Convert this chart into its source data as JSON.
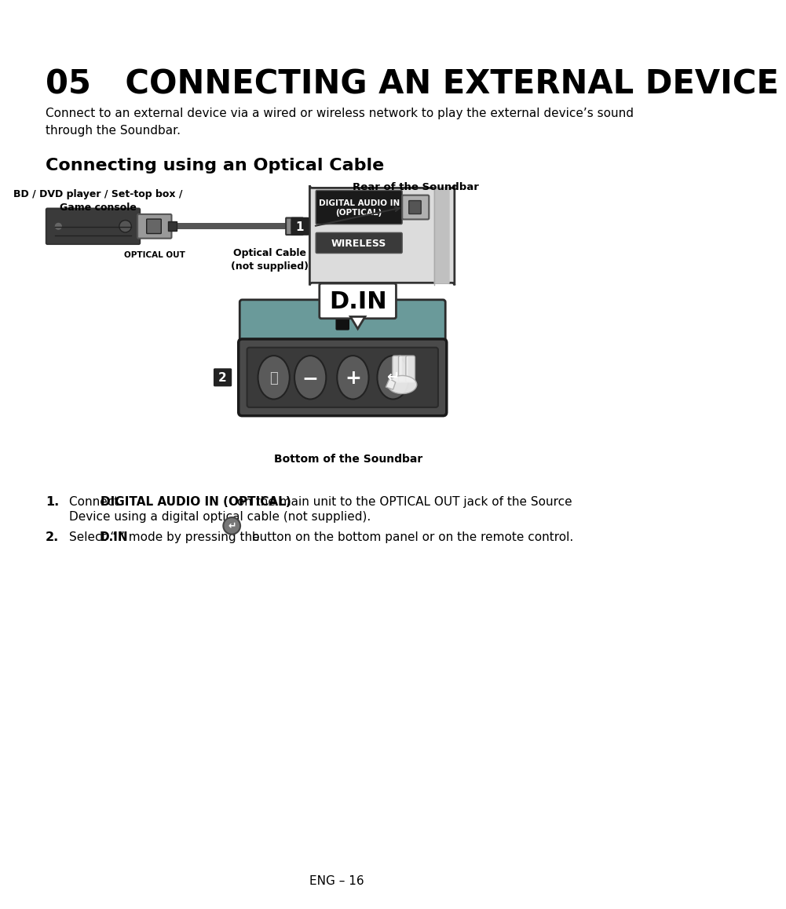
{
  "title": "05   CONNECTING AN EXTERNAL DEVICE",
  "subtitle": "Connect to an external device via a wired or wireless network to play the external device’s sound\nthrough the Soundbar.",
  "section_title": "Connecting using an Optical Cable",
  "label_rear": "Rear of the Soundbar",
  "label_bd": "BD / DVD player / Set-top box /\nGame console",
  "label_optical_out": "OPTICAL OUT",
  "label_optical_cable": "Optical Cable\n(not supplied)",
  "label_digital_audio": "DIGITAL AUDIO IN\n(OPTICAL)",
  "label_wireless": "WIRELESS",
  "label_din": "D.IN",
  "label_bottom": "Bottom of the Soundbar",
  "step1_normal1": "Connect ",
  "step1_bold": "DIGITAL AUDIO IN (OPTICAL)",
  "step1_normal2": " on the main unit to the OPTICAL OUT jack of the Source",
  "step1_normal3": "Device using a digital optical cable (not supplied).",
  "step2_normal1": "Select “",
  "step2_bold": "D.IN",
  "step2_normal2": "” mode by pressing the ",
  "step2_normal3": " button on the bottom panel or on the remote control.",
  "page_number": "ENG – 16",
  "bg_color": "#ffffff",
  "text_color": "#000000",
  "teal_color": "#6a9a9a",
  "dark_color": "#2a2a2a",
  "gray_color": "#888888",
  "light_gray": "#cccccc",
  "border_color": "#333333"
}
